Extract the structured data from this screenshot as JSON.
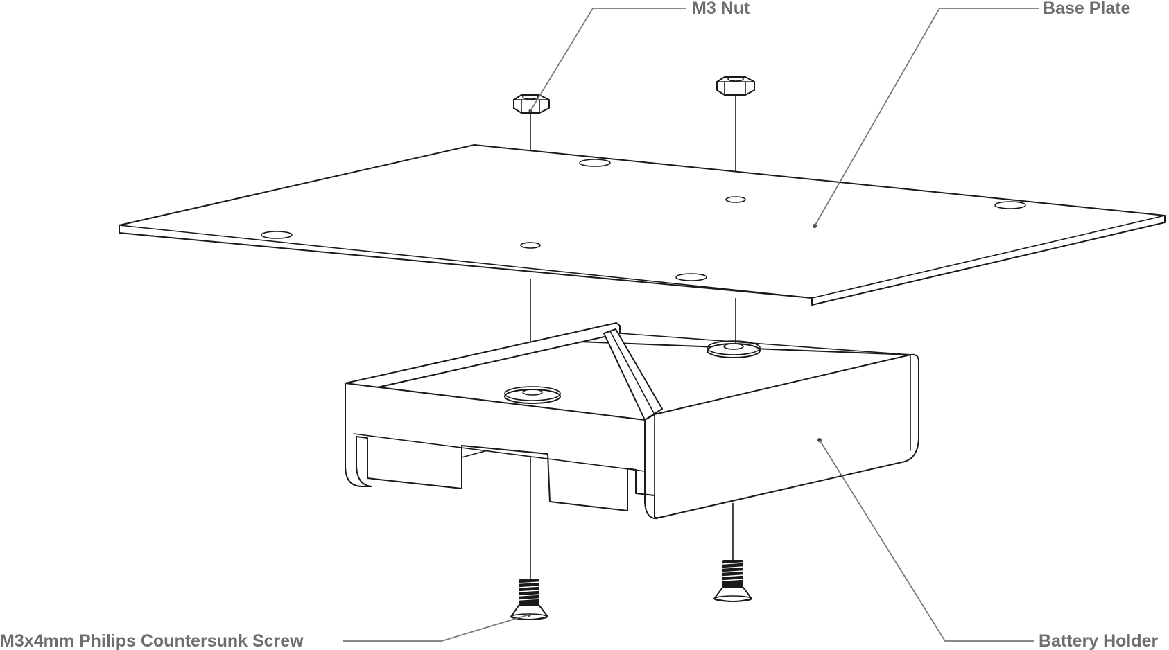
{
  "diagram": {
    "labels": {
      "nut": "M3 Nut",
      "plate": "Base Plate",
      "screw": "M3x4mm Philips Countersunk Screw",
      "holder": "Battery Holder"
    },
    "colors": {
      "line": "#1a1a1a",
      "leader": "#7a7a7a",
      "label": "#6e6e6e",
      "background": "#ffffff"
    }
  }
}
